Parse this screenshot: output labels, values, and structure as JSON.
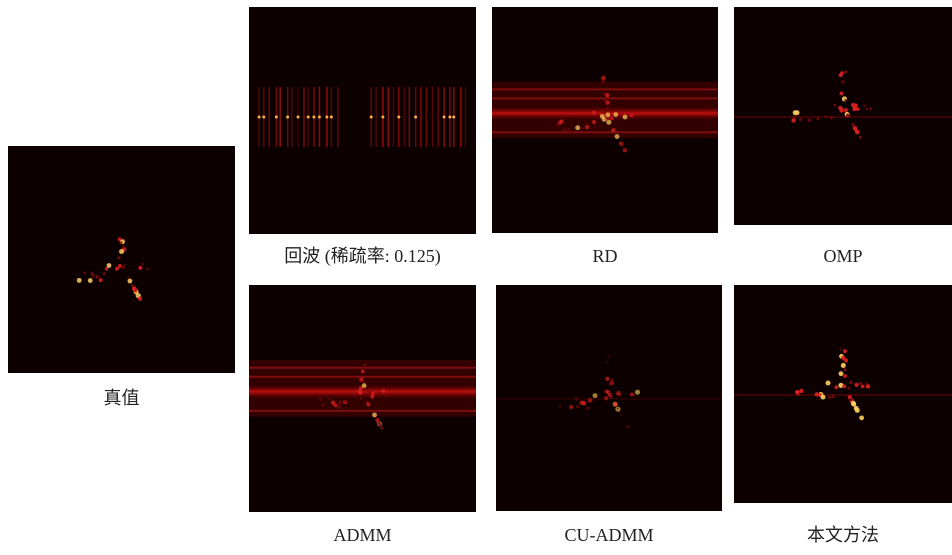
{
  "figure": {
    "panels": [
      {
        "caption": "真值"
      },
      {
        "caption": "回波 (稀疏率: 0.125)"
      },
      {
        "caption": "RD"
      },
      {
        "caption": "OMP"
      },
      {
        "caption": "ADMM"
      },
      {
        "caption": "CU-ADMM"
      },
      {
        "caption": "本文方法"
      }
    ]
  }
}
